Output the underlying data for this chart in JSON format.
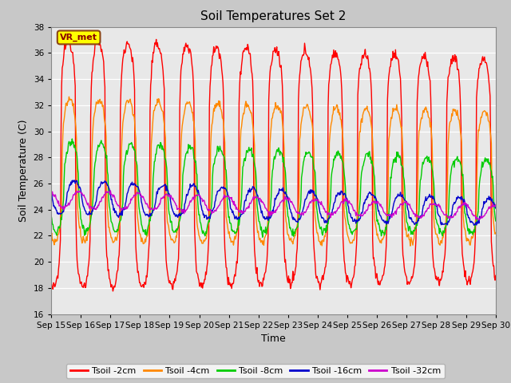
{
  "title": "Soil Temperatures Set 2",
  "xlabel": "Time",
  "ylabel": "Soil Temperature (C)",
  "ylim": [
    16,
    38
  ],
  "yticks": [
    16,
    18,
    20,
    22,
    24,
    26,
    28,
    30,
    32,
    34,
    36,
    38
  ],
  "fig_bg_color": "#c8c8c8",
  "plot_bg_color": "#e8e8e8",
  "series": [
    "Tsoil -2cm",
    "Tsoil -4cm",
    "Tsoil -8cm",
    "Tsoil -16cm",
    "Tsoil -32cm"
  ],
  "colors": [
    "#ff0000",
    "#ff8800",
    "#00cc00",
    "#0000cc",
    "#cc00cc"
  ],
  "annotation_text": "VR_met",
  "annotation_bg": "#ffff00",
  "annotation_border": "#8B4513",
  "num_days": 15,
  "start_day": 15,
  "samples_per_day": 48
}
